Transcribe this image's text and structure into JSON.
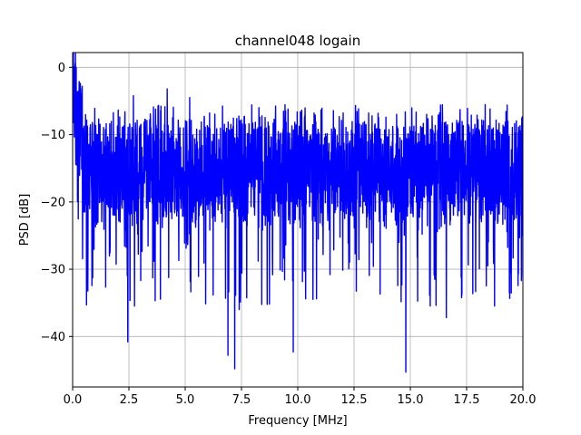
{
  "chart_data": {
    "type": "line",
    "title": "channel048 logain",
    "xlabel": "Frequency [MHz]",
    "ylabel": "PSD [dB]",
    "xlim": [
      0,
      20
    ],
    "ylim": [
      -47.5,
      2.2
    ],
    "grid": true,
    "x_ticks": [
      0,
      2.5,
      5,
      7.5,
      10,
      12.5,
      15,
      17.5,
      20
    ],
    "x_tick_labels": [
      "0.0",
      "2.5",
      "5.0",
      "7.5",
      "10.0",
      "12.5",
      "15.0",
      "17.5",
      "20.0"
    ],
    "y_ticks": [
      0,
      -10,
      -20,
      -30,
      -40
    ],
    "y_tick_labels": [
      "0",
      "−10",
      "−20",
      "−30",
      "−40"
    ],
    "series": [
      {
        "color": "#0000ff",
        "approximate": true,
        "baseline_db": -15.5,
        "noise_span_db": [
          -28,
          -5
        ],
        "x": [
          0.0,
          0.05,
          0.1,
          0.2,
          0.3,
          0.5,
          0.8,
          1.2,
          1.5,
          2.0,
          2.45,
          2.7,
          3.2,
          4.2,
          5.0,
          5.2,
          6.0,
          6.9,
          7.2,
          7.4,
          8.2,
          9.8,
          10.5,
          12.5,
          14.0,
          14.8,
          16.0,
          16.6,
          17.6,
          18.5,
          19.4,
          19.9,
          20.0
        ],
        "y": [
          0.0,
          -2.0,
          -4.5,
          -7.5,
          -10.0,
          -12.0,
          -14.5,
          -17.0,
          -15.0,
          -16.0,
          -40.8,
          -4.2,
          -16.0,
          -3.2,
          -16.0,
          -4.5,
          -16.5,
          -42.8,
          -44.8,
          -36.0,
          -16.0,
          -42.3,
          -16.0,
          -18.0,
          -16.0,
          -45.3,
          -16.0,
          -37.2,
          -17.0,
          -16.0,
          -33.5,
          -16.0,
          -18.0
        ]
      }
    ]
  }
}
